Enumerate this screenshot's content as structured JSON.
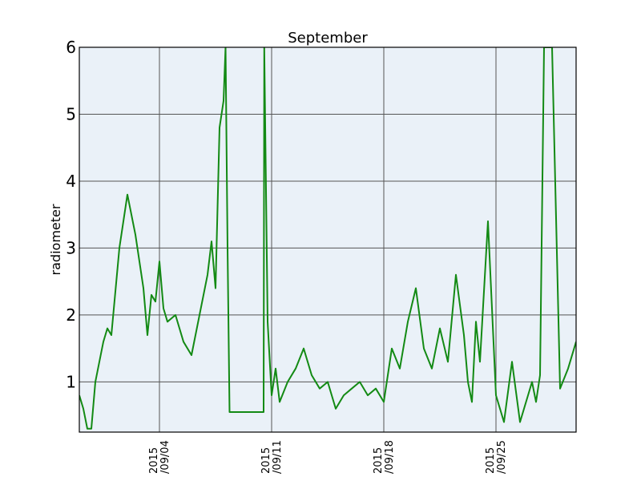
{
  "chart_data": {
    "type": "line",
    "title": "September",
    "xlabel": "",
    "ylabel": "radiometer",
    "xlim": [
      "2015-08-30T00:00",
      "2015-09-30T00:00"
    ],
    "ylim": [
      0.25,
      6
    ],
    "yticks": [
      1,
      2,
      3,
      4,
      5,
      6
    ],
    "xticks": [
      {
        "date": "2015-09-04",
        "line1": "2015",
        "line2": "/09/04"
      },
      {
        "date": "2015-09-11",
        "line1": "2015",
        "line2": "/09/11"
      },
      {
        "date": "2015-09-18",
        "line1": "2015",
        "line2": "/09/18"
      },
      {
        "date": "2015-09-25",
        "line1": "2015",
        "line2": "/09/25"
      }
    ],
    "grid": true,
    "background": "#eaf1f8",
    "line_color": "#138a14",
    "series": [
      {
        "x": [
          "2015-08-30T00:00",
          "2015-08-30T06:00",
          "2015-08-30T12:00",
          "2015-08-30T18:00",
          "2015-08-31T00:00",
          "2015-08-31T06:00",
          "2015-08-31T12:00",
          "2015-08-31T18:00",
          "2015-09-01T00:00",
          "2015-09-01T12:00",
          "2015-09-02T00:00",
          "2015-09-02T12:00",
          "2015-09-03T00:00",
          "2015-09-03T06:00",
          "2015-09-03T12:00",
          "2015-09-03T18:00",
          "2015-09-04T00:00",
          "2015-09-04T06:00",
          "2015-09-04T12:00",
          "2015-09-05T00:00",
          "2015-09-05T12:00",
          "2015-09-06T00:00",
          "2015-09-06T12:00",
          "2015-09-07T00:00",
          "2015-09-07T06:00",
          "2015-09-07T12:00",
          "2015-09-07T18:00",
          "2015-09-08T00:00",
          "2015-09-08T03:00",
          "2015-09-08T06:00",
          "2015-09-08T09:00",
          "2015-09-08T12:00",
          "2015-09-08T15:00",
          "2015-09-08T18:00",
          "2015-09-08T21:00",
          "2015-09-09T00:00",
          "2015-09-09T12:00",
          "2015-09-10T00:00",
          "2015-09-10T12:00",
          "2015-09-10T13:00",
          "2015-09-10T18:00",
          "2015-09-11T00:00",
          "2015-09-11T06:00",
          "2015-09-11T12:00",
          "2015-09-12T00:00",
          "2015-09-12T12:00",
          "2015-09-13T00:00",
          "2015-09-13T12:00",
          "2015-09-14T00:00",
          "2015-09-14T12:00",
          "2015-09-15T00:00",
          "2015-09-15T12:00",
          "2015-09-16T00:00",
          "2015-09-16T12:00",
          "2015-09-17T00:00",
          "2015-09-17T12:00",
          "2015-09-18T00:00",
          "2015-09-18T12:00",
          "2015-09-19T00:00",
          "2015-09-19T12:00",
          "2015-09-20T00:00",
          "2015-09-20T12:00",
          "2015-09-21T00:00",
          "2015-09-21T12:00",
          "2015-09-22T00:00",
          "2015-09-22T12:00",
          "2015-09-23T00:00",
          "2015-09-23T06:00",
          "2015-09-23T12:00",
          "2015-09-23T18:00",
          "2015-09-24T00:00",
          "2015-09-24T12:00",
          "2015-09-25T00:00",
          "2015-09-25T12:00",
          "2015-09-26T00:00",
          "2015-09-26T12:00",
          "2015-09-27T00:00",
          "2015-09-27T06:00",
          "2015-09-27T12:00",
          "2015-09-27T18:00",
          "2015-09-28T00:00",
          "2015-09-28T12:00",
          "2015-09-29T00:00",
          "2015-09-29T12:00",
          "2015-09-30T00:00"
        ],
        "y": [
          0.8,
          0.6,
          0.3,
          0.3,
          1.0,
          1.3,
          1.6,
          1.8,
          1.7,
          3.0,
          3.8,
          3.2,
          2.4,
          1.7,
          2.3,
          2.2,
          2.8,
          2.1,
          1.9,
          2.0,
          1.6,
          1.4,
          2.0,
          2.6,
          3.1,
          2.4,
          4.8,
          5.2,
          6.0,
          3.0,
          0.55,
          0.55,
          0.55,
          0.55,
          0.55,
          0.55,
          0.55,
          0.55,
          0.55,
          6.0,
          1.9,
          0.8,
          1.2,
          0.7,
          1.0,
          1.2,
          1.5,
          1.1,
          0.9,
          1.0,
          0.6,
          0.8,
          0.9,
          1.0,
          0.8,
          0.9,
          0.7,
          1.5,
          1.2,
          1.9,
          2.4,
          1.5,
          1.2,
          1.8,
          1.3,
          2.6,
          1.7,
          1.0,
          0.7,
          1.9,
          1.3,
          3.4,
          0.8,
          0.4,
          1.3,
          0.4,
          0.8,
          1.0,
          0.7,
          1.1,
          6.0,
          6.0,
          0.9,
          1.2,
          1.6
        ]
      }
    ]
  }
}
